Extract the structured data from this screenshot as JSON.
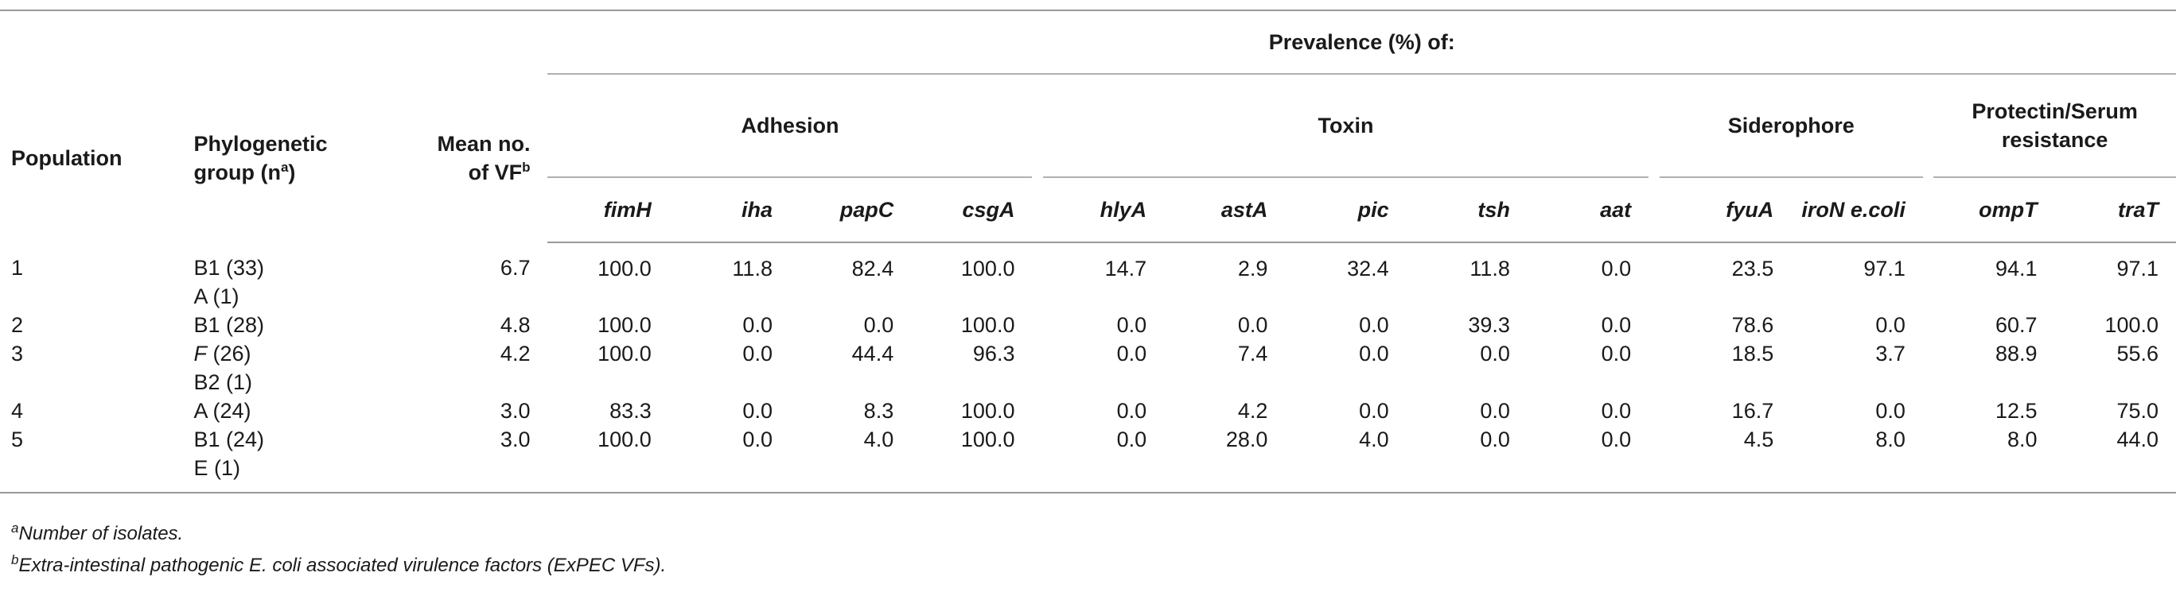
{
  "header": {
    "population": "Population",
    "phylo_line1": "Phylogenetic",
    "phylo_line2": "group (n",
    "phylo_sup": "a",
    "phylo_close": ")",
    "meanvf_line1": "Mean no.",
    "meanvf_line2": "of VF",
    "meanvf_sup": "b",
    "prevalence": "Prevalence (%) of:",
    "groups": {
      "adhesion": "Adhesion",
      "toxin": "Toxin",
      "siderophore": "Siderophore",
      "protectin_line1": "Protectin/Serum",
      "protectin_line2": "resistance"
    },
    "genes": [
      "fimH",
      "iha",
      "papC",
      "csgA",
      "hlyA",
      "astA",
      "pic",
      "tsh",
      "aat",
      "fyuA",
      "iroN e.coli",
      "ompT",
      "traT"
    ]
  },
  "rows": [
    {
      "population": "1",
      "groups": [
        "B1 (33)",
        "A (1)"
      ],
      "group_italic": [
        false,
        false
      ],
      "mean_vf": "6.7",
      "values": [
        "100.0",
        "11.8",
        "82.4",
        "100.0",
        "14.7",
        "2.9",
        "32.4",
        "11.8",
        "0.0",
        "23.5",
        "97.1",
        "94.1",
        "97.1"
      ]
    },
    {
      "population": "2",
      "groups": [
        "B1 (28)"
      ],
      "group_italic": [
        false
      ],
      "mean_vf": "4.8",
      "values": [
        "100.0",
        "0.0",
        "0.0",
        "100.0",
        "0.0",
        "0.0",
        "0.0",
        "39.3",
        "0.0",
        "78.6",
        "0.0",
        "60.7",
        "100.0"
      ]
    },
    {
      "population": "3",
      "groups": [
        "F (26)",
        "B2 (1)"
      ],
      "group_italic": [
        true,
        false
      ],
      "mean_vf": "4.2",
      "values": [
        "100.0",
        "0.0",
        "44.4",
        "96.3",
        "0.0",
        "7.4",
        "0.0",
        "0.0",
        "0.0",
        "18.5",
        "3.7",
        "88.9",
        "55.6"
      ]
    },
    {
      "population": "4",
      "groups": [
        "A (24)"
      ],
      "group_italic": [
        false
      ],
      "mean_vf": "3.0",
      "values": [
        "83.3",
        "0.0",
        "8.3",
        "100.0",
        "0.0",
        "4.2",
        "0.0",
        "0.0",
        "0.0",
        "16.7",
        "0.0",
        "12.5",
        "75.0"
      ]
    },
    {
      "population": "5",
      "groups": [
        "B1 (24)",
        "E (1)"
      ],
      "group_italic": [
        false,
        false
      ],
      "mean_vf": "3.0",
      "values": [
        "100.0",
        "0.0",
        "4.0",
        "100.0",
        "0.0",
        "28.0",
        "4.0",
        "0.0",
        "0.0",
        "4.5",
        "8.0",
        "8.0",
        "44.0"
      ]
    }
  ],
  "footnotes": {
    "a_sup": "a",
    "a_text": "Number of isolates.",
    "b_sup": "b",
    "b_text": "Extra-intestinal pathogenic E. coli associated virulence factors (ExPEC VFs)."
  }
}
